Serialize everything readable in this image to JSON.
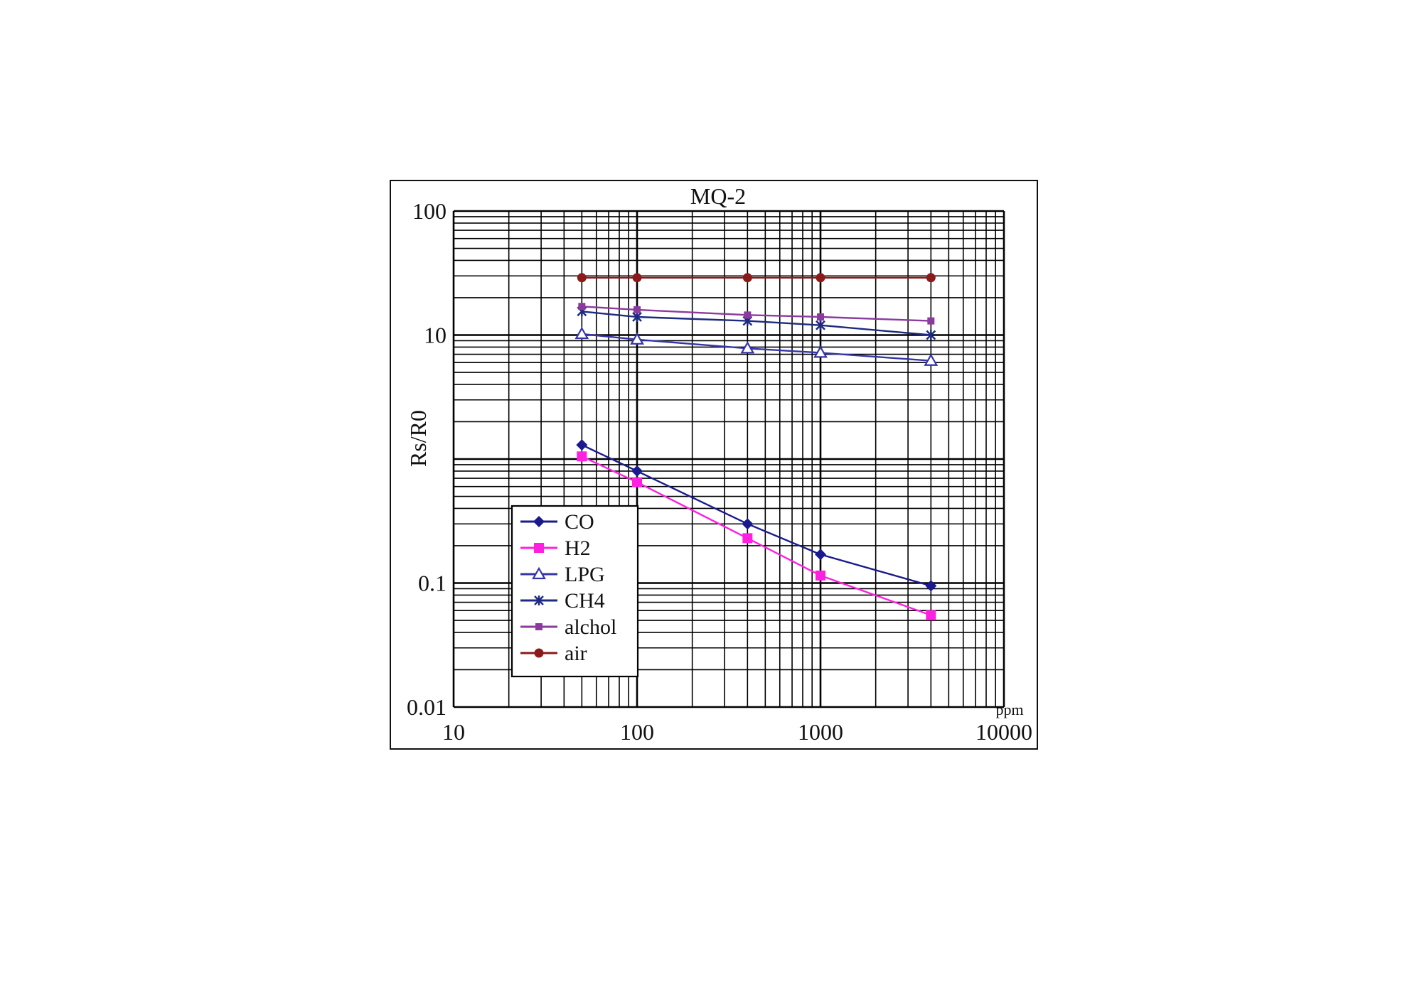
{
  "chart_data": {
    "type": "line",
    "title": "MQ-2",
    "xlabel": "",
    "ylabel": "Rs/R0",
    "x_unit_label": "ppm",
    "xscale": "log",
    "yscale": "log",
    "xlim": [
      10,
      10000
    ],
    "ylim": [
      0.01,
      100
    ],
    "x_tick_labels": [
      "10",
      "100",
      "1000",
      "10000"
    ],
    "y_tick_labels": [
      "0.01",
      "0.1",
      "10",
      "100"
    ],
    "grid": true,
    "legend_position": "lower-left",
    "x": [
      50,
      100,
      400,
      1000,
      4000
    ],
    "series": [
      {
        "name": "CO",
        "color": "#1a1a8c",
        "marker": "diamond",
        "values": [
          1.3,
          0.8,
          0.3,
          0.17,
          0.095
        ]
      },
      {
        "name": "H2",
        "color": "#ff1fe0",
        "marker": "square",
        "values": [
          1.05,
          0.65,
          0.23,
          0.115,
          0.055
        ]
      },
      {
        "name": "LPG",
        "color": "#3535a8",
        "marker": "triangle-open",
        "values": [
          10.2,
          9.2,
          7.8,
          7.2,
          6.2
        ]
      },
      {
        "name": "CH4",
        "color": "#1d2a80",
        "marker": "star",
        "values": [
          15.5,
          14,
          13,
          12,
          10
        ]
      },
      {
        "name": "alchol",
        "color": "#8b3a9e",
        "marker": "square-small",
        "values": [
          17,
          16,
          14.5,
          14,
          13
        ]
      },
      {
        "name": "air",
        "color": "#8b1a1a",
        "marker": "circle",
        "values": [
          29,
          29,
          29,
          29,
          29
        ]
      }
    ]
  }
}
